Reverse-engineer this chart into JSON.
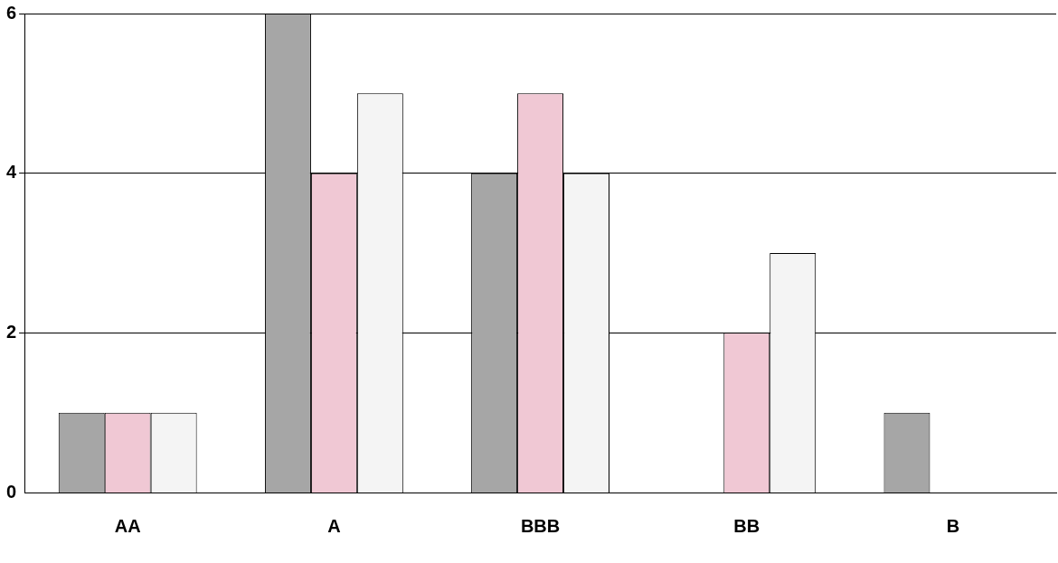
{
  "chart_data": {
    "type": "bar",
    "categories": [
      "AA",
      "A",
      "BBB",
      "BB",
      "B"
    ],
    "series": [
      {
        "color": "#a6a6a6",
        "values": [
          1,
          6,
          4,
          0,
          1
        ]
      },
      {
        "color": "#f0c8d4",
        "values": [
          1,
          4,
          5,
          2,
          0
        ]
      },
      {
        "color": "#f4f4f4",
        "values": [
          1,
          5,
          4,
          3,
          0
        ]
      }
    ],
    "ylim": [
      0,
      6
    ],
    "yticks": [
      0,
      2,
      4,
      6
    ],
    "grid": "y",
    "legend": false
  }
}
